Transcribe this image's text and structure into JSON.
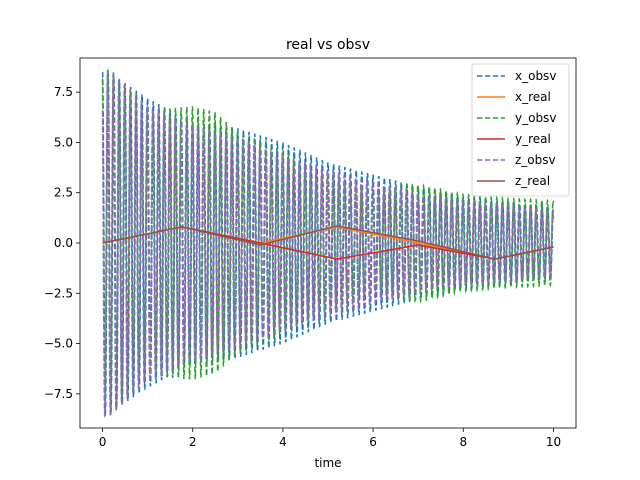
{
  "chart_data": {
    "type": "line",
    "title": "real vs obsv",
    "xlabel": "time",
    "ylabel": "",
    "xlim": [
      -0.5,
      10.5
    ],
    "ylim": [
      -9.2,
      9.2
    ],
    "xticks": [
      0,
      2,
      4,
      6,
      8,
      10
    ],
    "xtick_labels": [
      "0",
      "2",
      "4",
      "6",
      "8",
      "10"
    ],
    "yticks": [
      -7.5,
      -5.0,
      -2.5,
      0.0,
      2.5,
      5.0,
      7.5
    ],
    "ytick_labels": [
      "−7.5",
      "−5.0",
      "−2.5",
      "0.0",
      "2.5",
      "5.0",
      "7.5"
    ],
    "grid": false,
    "legend_position": "top-right",
    "series": [
      {
        "name": "x_obsv",
        "color": "#1f77b4",
        "style": "dashed",
        "kind": "oscillation",
        "frequency": 8.0,
        "phase": 0.0,
        "envelope": {
          "x": [
            0,
            0.2,
            1,
            2,
            3,
            4,
            5,
            6,
            7,
            8,
            9,
            10
          ],
          "y": [
            8.5,
            8.4,
            7.2,
            6.0,
            5.7,
            5.0,
            4.0,
            3.4,
            2.8,
            2.3,
            2.0,
            1.7
          ]
        }
      },
      {
        "name": "x_real",
        "color": "#ff7f0e",
        "style": "solid",
        "kind": "line",
        "x": [
          0,
          1.75,
          3.5,
          5.2,
          7.0,
          8.7,
          10
        ],
        "y": [
          0.0,
          0.8,
          0.0,
          0.8,
          0.0,
          -0.8,
          -0.2
        ]
      },
      {
        "name": "y_obsv",
        "color": "#2ca02c",
        "style": "dashed",
        "kind": "oscillation",
        "frequency": 8.0,
        "phase": 0.35,
        "envelope": {
          "x": [
            0,
            0.2,
            1,
            1.5,
            2,
            2.5,
            3,
            4,
            5,
            6,
            7,
            8,
            9,
            10
          ],
          "y": [
            8.7,
            8.6,
            6.5,
            6.7,
            6.8,
            6.5,
            5.5,
            4.5,
            3.4,
            2.6,
            2.9,
            2.4,
            2.2,
            2.1
          ]
        }
      },
      {
        "name": "y_real",
        "color": "#d62728",
        "style": "solid",
        "kind": "line",
        "x": [
          0,
          1.75,
          3.5,
          5.2,
          7.0,
          8.7,
          10
        ],
        "y": [
          0.0,
          0.8,
          0.0,
          -0.8,
          -0.1,
          -0.8,
          -0.2
        ]
      },
      {
        "name": "z_obsv",
        "color": "#9467bd",
        "style": "dashed",
        "kind": "oscillation",
        "frequency": 8.0,
        "phase": 0.7,
        "envelope": {
          "x": [
            0,
            0.2,
            1,
            2,
            3,
            4,
            5,
            6,
            7,
            8,
            9,
            10
          ],
          "y": [
            8.6,
            8.5,
            6.8,
            5.8,
            5.2,
            4.3,
            3.6,
            3.0,
            2.4,
            2.1,
            1.9,
            1.6
          ]
        }
      },
      {
        "name": "z_real",
        "color": "#8c564b",
        "style": "solid",
        "kind": "line",
        "x": [
          0,
          1.75,
          3.5,
          5.2,
          7.0,
          8.7,
          10
        ],
        "y": [
          0.0,
          0.8,
          -0.1,
          0.85,
          0.1,
          -0.8,
          -0.2
        ]
      }
    ]
  }
}
